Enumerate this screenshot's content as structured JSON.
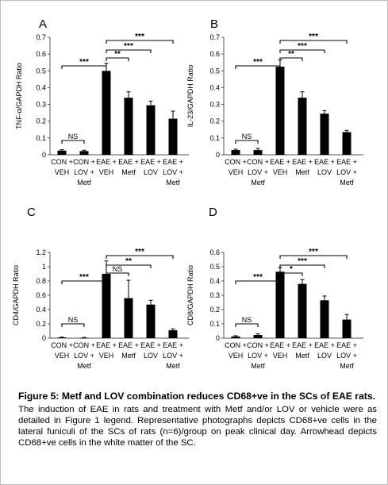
{
  "chart_data": [
    {
      "type": "bar",
      "panel_label": "A",
      "ylabel": "TNF-α/GAPDH Ratio",
      "ylim": [
        0,
        0.7
      ],
      "yticks": [
        "0",
        "0.1",
        "0.2",
        "0.3",
        "0.4",
        "0.5",
        "0.6",
        "0.7"
      ],
      "categories": [
        [
          "CON +",
          "VEH"
        ],
        [
          "CON +",
          "LOV +",
          "Metf"
        ],
        [
          "EAE +",
          "VEH"
        ],
        [
          "EAE +",
          "Metf"
        ],
        [
          "EAE +",
          "LOV"
        ],
        [
          "EAE +",
          "LOV +",
          "Metf"
        ]
      ],
      "values": [
        0.025,
        0.022,
        0.5,
        0.34,
        0.295,
        0.215
      ],
      "errors": [
        0.005,
        0.005,
        0.045,
        0.035,
        0.025,
        0.045
      ],
      "comparisons": [
        {
          "from": 0,
          "to": 1,
          "label": "NS"
        },
        {
          "from": 0,
          "to": 2,
          "label": "***"
        },
        {
          "from": 2,
          "to": 3,
          "label": "**"
        },
        {
          "from": 2,
          "to": 4,
          "label": "***"
        },
        {
          "from": 2,
          "to": 5,
          "label": "***"
        }
      ]
    },
    {
      "type": "bar",
      "panel_label": "B",
      "ylabel": "IL-23/GAPDH Ratio",
      "ylim": [
        0,
        0.7
      ],
      "yticks": [
        "0",
        "0.1",
        "0.2",
        "0.3",
        "0.4",
        "0.5",
        "0.6",
        "0.7"
      ],
      "categories": [
        [
          "CON +",
          "VEH"
        ],
        [
          "CON +",
          "LOV +",
          "Metf"
        ],
        [
          "EAE +",
          "VEH"
        ],
        [
          "EAE +",
          "Metf"
        ],
        [
          "EAE +",
          "LOV"
        ],
        [
          "EAE +",
          "LOV +",
          "Metf"
        ]
      ],
      "values": [
        0.028,
        0.028,
        0.525,
        0.34,
        0.245,
        0.135
      ],
      "errors": [
        0.005,
        0.01,
        0.04,
        0.035,
        0.018,
        0.01
      ],
      "comparisons": [
        {
          "from": 0,
          "to": 1,
          "label": "NS"
        },
        {
          "from": 0,
          "to": 2,
          "label": "***"
        },
        {
          "from": 2,
          "to": 3,
          "label": "**"
        },
        {
          "from": 2,
          "to": 4,
          "label": "***"
        },
        {
          "from": 2,
          "to": 5,
          "label": "***"
        }
      ]
    },
    {
      "type": "bar",
      "panel_label": "C",
      "ylabel": "CD4/GAPDH Ratio",
      "ylim": [
        0,
        1.2
      ],
      "yticks": [
        "0",
        "0.2",
        "0.4",
        "0.6",
        "0.8",
        "1",
        "1.2"
      ],
      "categories": [
        [
          "CON +",
          "VEH"
        ],
        [
          "CON +",
          "LOV +",
          "Metf"
        ],
        [
          "EAE +",
          "VEH"
        ],
        [
          "EAE +",
          "Metf"
        ],
        [
          "EAE +",
          "LOV"
        ],
        [
          "EAE +",
          "LOV +",
          "Metf"
        ]
      ],
      "values": [
        0.01,
        0.005,
        0.9,
        0.56,
        0.47,
        0.11
      ],
      "errors": [
        0.005,
        0.005,
        0.18,
        0.25,
        0.06,
        0.02
      ],
      "comparisons": [
        {
          "from": 0,
          "to": 1,
          "label": "NS"
        },
        {
          "from": 0,
          "to": 2,
          "label": "***"
        },
        {
          "from": 2,
          "to": 3,
          "label": "NS"
        },
        {
          "from": 2,
          "to": 4,
          "label": "**"
        },
        {
          "from": 2,
          "to": 5,
          "label": "***"
        }
      ]
    },
    {
      "type": "bar",
      "panel_label": "D",
      "ylabel": "CD8/GAPDH Ratio",
      "ylim": [
        0,
        0.6
      ],
      "yticks": [
        "0",
        "0.1",
        "0.2",
        "0.3",
        "0.4",
        "0.5",
        "0.6"
      ],
      "categories": [
        [
          "CON +",
          "VEH"
        ],
        [
          "CON +",
          "LOV +",
          "Metf"
        ],
        [
          "EAE +",
          "VEH"
        ],
        [
          "EAE +",
          "Metf"
        ],
        [
          "EAE +",
          "LOV"
        ],
        [
          "EAE +",
          "LOV +",
          "Metf"
        ]
      ],
      "values": [
        0.012,
        0.022,
        0.465,
        0.38,
        0.265,
        0.13
      ],
      "errors": [
        0.005,
        0.008,
        0.03,
        0.03,
        0.03,
        0.035
      ],
      "comparisons": [
        {
          "from": 0,
          "to": 1,
          "label": "NS"
        },
        {
          "from": 0,
          "to": 2,
          "label": "***"
        },
        {
          "from": 2,
          "to": 3,
          "label": "*"
        },
        {
          "from": 2,
          "to": 4,
          "label": "***"
        },
        {
          "from": 2,
          "to": 5,
          "label": "***"
        }
      ]
    }
  ],
  "caption": {
    "title": "Figure 5: Metf and LOV combination reduces CD68+ve in the SCs of EAE rats.",
    "body": "The induction of EAE in rats and treatment with Metf and/or LOV or vehicle were as detailed in Figure 1 legend. Representative photographs depicts CD68+ve cells in the lateral funiculi of the SCs of rats (n=6)/group on peak clinical day. Arrowhead depicts CD68+ve cells in the white matter of the SC."
  },
  "colors": {
    "bar": "#000000",
    "axis": "#555555",
    "background": "#ffffff",
    "frame": "#bdbdbd"
  }
}
